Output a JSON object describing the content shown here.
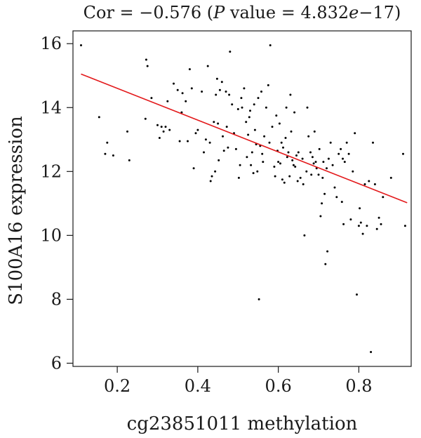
{
  "chart_data": {
    "type": "scatter",
    "title_parts": {
      "prefix": "Cor = −0.576 (",
      "p_italic": "P",
      "middle": " value = 4.832",
      "e_italic": "e",
      "suffix": "−17)"
    },
    "xlabel": "cg23851011 methylation",
    "ylabel": "S100A16 expression",
    "xlim": [
      0.09,
      0.93
    ],
    "ylim": [
      5.9,
      16.4
    ],
    "xticks": [
      0.2,
      0.4,
      0.6,
      0.8
    ],
    "xtick_labels": [
      "0.2",
      "0.4",
      "0.6",
      "0.8"
    ],
    "yticks": [
      6,
      8,
      10,
      12,
      14,
      16
    ],
    "ytick_labels": [
      "6",
      "8",
      "10",
      "12",
      "14",
      "16"
    ],
    "grid": false,
    "colors": {
      "points": "#000000",
      "fit_line": "#e31a1c"
    },
    "fit_line": {
      "x": [
        0.11,
        0.92
      ],
      "y": [
        15.05,
        11.02
      ]
    },
    "points": [
      [
        0.11,
        15.95
      ],
      [
        0.155,
        13.7
      ],
      [
        0.17,
        12.55
      ],
      [
        0.175,
        12.9
      ],
      [
        0.19,
        12.5
      ],
      [
        0.225,
        13.25
      ],
      [
        0.23,
        12.35
      ],
      [
        0.27,
        13.65
      ],
      [
        0.272,
        15.5
      ],
      [
        0.275,
        15.3
      ],
      [
        0.285,
        14.3
      ],
      [
        0.3,
        13.45
      ],
      [
        0.305,
        13.05
      ],
      [
        0.31,
        13.4
      ],
      [
        0.315,
        13.25
      ],
      [
        0.32,
        13.4
      ],
      [
        0.325,
        14.2
      ],
      [
        0.33,
        13.3
      ],
      [
        0.34,
        14.75
      ],
      [
        0.35,
        14.55
      ],
      [
        0.355,
        12.95
      ],
      [
        0.36,
        13.85
      ],
      [
        0.362,
        14.45
      ],
      [
        0.37,
        14.2
      ],
      [
        0.375,
        12.95
      ],
      [
        0.38,
        15.2
      ],
      [
        0.385,
        14.6
      ],
      [
        0.39,
        12.1
      ],
      [
        0.395,
        13.2
      ],
      [
        0.4,
        13.3
      ],
      [
        0.41,
        14.5
      ],
      [
        0.415,
        12.6
      ],
      [
        0.42,
        13.0
      ],
      [
        0.425,
        15.3
      ],
      [
        0.43,
        12.9
      ],
      [
        0.432,
        11.7
      ],
      [
        0.435,
        11.85
      ],
      [
        0.44,
        13.55
      ],
      [
        0.443,
        12.0
      ],
      [
        0.445,
        14.4
      ],
      [
        0.448,
        14.9
      ],
      [
        0.45,
        13.5
      ],
      [
        0.452,
        12.35
      ],
      [
        0.455,
        14.55
      ],
      [
        0.46,
        14.8
      ],
      [
        0.462,
        13.1
      ],
      [
        0.465,
        12.65
      ],
      [
        0.47,
        14.5
      ],
      [
        0.472,
        13.4
      ],
      [
        0.475,
        12.75
      ],
      [
        0.478,
        14.4
      ],
      [
        0.48,
        15.75
      ],
      [
        0.485,
        14.1
      ],
      [
        0.49,
        13.2
      ],
      [
        0.495,
        12.7
      ],
      [
        0.5,
        13.95
      ],
      [
        0.502,
        11.8
      ],
      [
        0.505,
        12.2
      ],
      [
        0.508,
        14.3
      ],
      [
        0.51,
        14.0
      ],
      [
        0.515,
        14.6
      ],
      [
        0.52,
        13.55
      ],
      [
        0.522,
        12.45
      ],
      [
        0.525,
        13.15
      ],
      [
        0.528,
        13.7
      ],
      [
        0.53,
        13.9
      ],
      [
        0.532,
        12.2
      ],
      [
        0.535,
        12.6
      ],
      [
        0.538,
        11.95
      ],
      [
        0.54,
        14.1
      ],
      [
        0.542,
        13.3
      ],
      [
        0.545,
        12.85
      ],
      [
        0.548,
        12.0
      ],
      [
        0.55,
        14.3
      ],
      [
        0.552,
        8.0
      ],
      [
        0.555,
        12.8
      ],
      [
        0.558,
        14.5
      ],
      [
        0.56,
        12.55
      ],
      [
        0.562,
        12.3
      ],
      [
        0.565,
        13.1
      ],
      [
        0.57,
        14.0
      ],
      [
        0.575,
        14.7
      ],
      [
        0.578,
        12.9
      ],
      [
        0.58,
        15.95
      ],
      [
        0.585,
        13.4
      ],
      [
        0.59,
        12.15
      ],
      [
        0.592,
        11.85
      ],
      [
        0.595,
        13.75
      ],
      [
        0.598,
        12.65
      ],
      [
        0.6,
        12.3
      ],
      [
        0.603,
        13.5
      ],
      [
        0.605,
        12.25
      ],
      [
        0.608,
        12.9
      ],
      [
        0.61,
        11.75
      ],
      [
        0.612,
        12.75
      ],
      [
        0.615,
        11.65
      ],
      [
        0.618,
        13.05
      ],
      [
        0.62,
        14.0
      ],
      [
        0.622,
        12.45
      ],
      [
        0.625,
        12.6
      ],
      [
        0.628,
        11.85
      ],
      [
        0.63,
        14.4
      ],
      [
        0.632,
        13.25
      ],
      [
        0.635,
        12.35
      ],
      [
        0.638,
        12.2
      ],
      [
        0.64,
        13.85
      ],
      [
        0.642,
        12.15
      ],
      [
        0.645,
        12.5
      ],
      [
        0.648,
        11.7
      ],
      [
        0.65,
        12.6
      ],
      [
        0.655,
        11.8
      ],
      [
        0.66,
        12.4
      ],
      [
        0.662,
        11.6
      ],
      [
        0.665,
        10.0
      ],
      [
        0.67,
        12.0
      ],
      [
        0.672,
        14.0
      ],
      [
        0.675,
        13.1
      ],
      [
        0.68,
        12.6
      ],
      [
        0.682,
        11.9
      ],
      [
        0.685,
        12.45
      ],
      [
        0.688,
        12.25
      ],
      [
        0.69,
        13.25
      ],
      [
        0.693,
        12.3
      ],
      [
        0.695,
        12.1
      ],
      [
        0.7,
        11.9
      ],
      [
        0.702,
        12.7
      ],
      [
        0.705,
        10.6
      ],
      [
        0.708,
        11.0
      ],
      [
        0.71,
        11.8
      ],
      [
        0.712,
        12.3
      ],
      [
        0.715,
        11.3
      ],
      [
        0.717,
        9.1
      ],
      [
        0.72,
        12.1
      ],
      [
        0.722,
        9.5
      ],
      [
        0.725,
        12.4
      ],
      [
        0.73,
        12.9
      ],
      [
        0.735,
        12.2
      ],
      [
        0.74,
        11.5
      ],
      [
        0.745,
        11.2
      ],
      [
        0.75,
        12.55
      ],
      [
        0.755,
        12.7
      ],
      [
        0.758,
        11.05
      ],
      [
        0.76,
        12.4
      ],
      [
        0.762,
        10.35
      ],
      [
        0.765,
        12.3
      ],
      [
        0.77,
        12.9
      ],
      [
        0.775,
        12.55
      ],
      [
        0.78,
        10.5
      ],
      [
        0.785,
        12.0
      ],
      [
        0.79,
        13.2
      ],
      [
        0.795,
        8.15
      ],
      [
        0.8,
        10.3
      ],
      [
        0.802,
        10.85
      ],
      [
        0.805,
        10.4
      ],
      [
        0.81,
        10.05
      ],
      [
        0.815,
        11.6
      ],
      [
        0.82,
        10.3
      ],
      [
        0.825,
        11.7
      ],
      [
        0.83,
        6.35
      ],
      [
        0.835,
        12.9
      ],
      [
        0.84,
        11.6
      ],
      [
        0.845,
        10.2
      ],
      [
        0.85,
        10.55
      ],
      [
        0.855,
        10.35
      ],
      [
        0.86,
        11.2
      ],
      [
        0.88,
        11.8
      ],
      [
        0.91,
        12.55
      ],
      [
        0.915,
        10.3
      ]
    ]
  }
}
